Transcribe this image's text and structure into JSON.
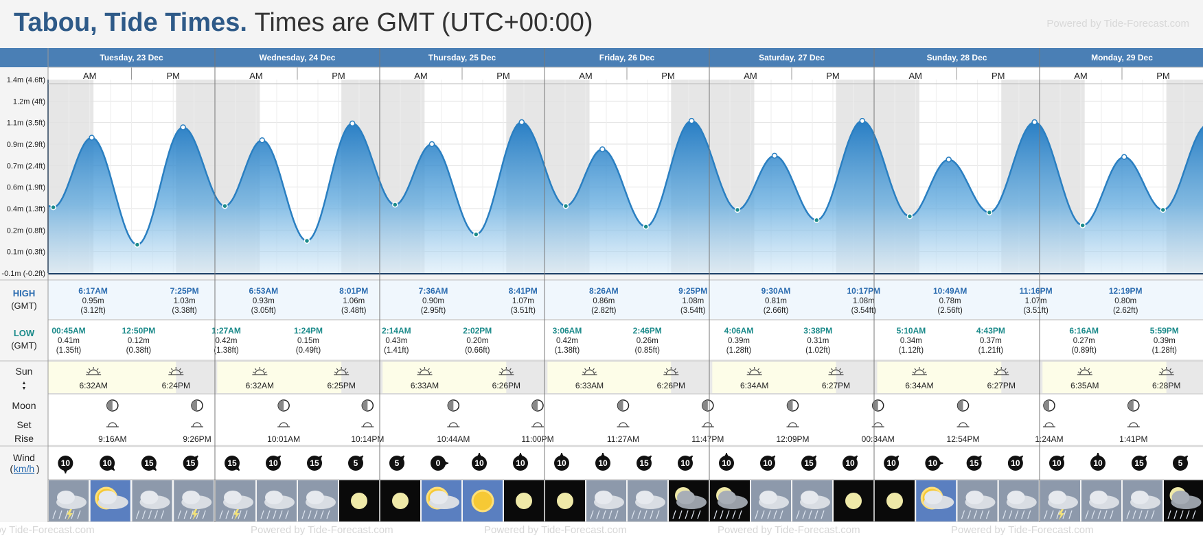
{
  "title": {
    "location": "Tabou, Tide Times.",
    "timezone": "Times are GMT (UTC+00:00)"
  },
  "powered_by": "Powered by Tide-Forecast.com",
  "ampm": {
    "am": "AM",
    "pm": "PM"
  },
  "row_labels": {
    "high": "HIGH",
    "low": "LOW",
    "tz": "(GMT)",
    "sun": "Sun",
    "moon": "Moon",
    "set": "Set",
    "rise": "Rise",
    "wind": "Wind",
    "wind_unit": "km/h"
  },
  "days": [
    {
      "label": "Tuesday, 23 Dec",
      "sunrise": "6:32AM",
      "sunset": "6:24PM",
      "moon": [
        {
          "time": "9:16AM",
          "event": "set"
        },
        {
          "time": "9:26PM",
          "event": "rise"
        }
      ]
    },
    {
      "label": "Wednesday, 24 Dec",
      "sunrise": "6:32AM",
      "sunset": "6:25PM",
      "moon": [
        {
          "time": "10:01AM",
          "event": "set"
        },
        {
          "time": "10:14PM",
          "event": "rise"
        }
      ]
    },
    {
      "label": "Thursday, 25 Dec",
      "sunrise": "6:33AM",
      "sunset": "6:26PM",
      "moon": [
        {
          "time": "10:44AM",
          "event": "set"
        },
        {
          "time": "11:00PM",
          "event": "rise"
        }
      ]
    },
    {
      "label": "Friday, 26 Dec",
      "sunrise": "6:33AM",
      "sunset": "6:26PM",
      "moon": [
        {
          "time": "11:27AM",
          "event": "set"
        },
        {
          "time": "11:47PM",
          "event": "rise"
        }
      ]
    },
    {
      "label": "Saturday, 27 Dec",
      "sunrise": "6:34AM",
      "sunset": "6:27PM",
      "moon": [
        {
          "time": "12:09PM",
          "event": "set"
        }
      ]
    },
    {
      "label": "Sunday, 28 Dec",
      "sunrise": "6:34AM",
      "sunset": "6:27PM",
      "moon": [
        {
          "time": "00:34AM",
          "event": "rise"
        },
        {
          "time": "12:54PM",
          "event": "set"
        }
      ]
    },
    {
      "label": "Monday, 29 Dec",
      "sunrise": "6:35AM",
      "sunset": "6:28PM",
      "moon": [
        {
          "time": "1:24AM",
          "event": "rise"
        },
        {
          "time": "1:41PM",
          "event": "set"
        }
      ]
    }
  ],
  "y_axis_labels": [
    "1.4m (4.6ft)",
    "1.2m (4ft)",
    "1.1m (3.5ft)",
    "0.9m (2.9ft)",
    "0.7m (2.4ft)",
    "0.6m (1.9ft)",
    "0.4m (1.3ft)",
    "0.2m (0.8ft)",
    "0.1m (0.3ft)",
    "-0.1m (-0.2ft)"
  ],
  "chart_data": {
    "type": "area",
    "x_unit": "hours since 00:00 Tue 23 Dec",
    "ylim": [
      -0.1,
      1.4
    ],
    "tides": [
      {
        "type": "low",
        "time": "00:45AM",
        "hour": 0.75,
        "m": "0.41m",
        "ft": "(1.35ft)",
        "v": 0.41
      },
      {
        "type": "high",
        "time": "6:17AM",
        "hour": 6.28,
        "m": "0.95m",
        "ft": "(3.12ft)",
        "v": 0.95
      },
      {
        "type": "low",
        "time": "12:50PM",
        "hour": 12.83,
        "m": "0.12m",
        "ft": "(0.38ft)",
        "v": 0.12
      },
      {
        "type": "high",
        "time": "7:25PM",
        "hour": 19.42,
        "m": "1.03m",
        "ft": "(3.38ft)",
        "v": 1.03
      },
      {
        "type": "low",
        "time": "1:27AM",
        "hour": 25.45,
        "m": "0.42m",
        "ft": "(1.38ft)",
        "v": 0.42
      },
      {
        "type": "high",
        "time": "6:53AM",
        "hour": 30.88,
        "m": "0.93m",
        "ft": "(3.05ft)",
        "v": 0.93
      },
      {
        "type": "low",
        "time": "1:24PM",
        "hour": 37.4,
        "m": "0.15m",
        "ft": "(0.49ft)",
        "v": 0.15
      },
      {
        "type": "high",
        "time": "8:01PM",
        "hour": 44.02,
        "m": "1.06m",
        "ft": "(3.48ft)",
        "v": 1.06
      },
      {
        "type": "low",
        "time": "2:14AM",
        "hour": 50.23,
        "m": "0.43m",
        "ft": "(1.41ft)",
        "v": 0.43
      },
      {
        "type": "high",
        "time": "7:36AM",
        "hour": 55.6,
        "m": "0.90m",
        "ft": "(2.95ft)",
        "v": 0.9
      },
      {
        "type": "low",
        "time": "2:02PM",
        "hour": 62.03,
        "m": "0.20m",
        "ft": "(0.66ft)",
        "v": 0.2
      },
      {
        "type": "high",
        "time": "8:41PM",
        "hour": 68.68,
        "m": "1.07m",
        "ft": "(3.51ft)",
        "v": 1.07
      },
      {
        "type": "low",
        "time": "3:06AM",
        "hour": 75.1,
        "m": "0.42m",
        "ft": "(1.38ft)",
        "v": 0.42
      },
      {
        "type": "high",
        "time": "8:26AM",
        "hour": 80.43,
        "m": "0.86m",
        "ft": "(2.82ft)",
        "v": 0.86
      },
      {
        "type": "low",
        "time": "2:46PM",
        "hour": 86.77,
        "m": "0.26m",
        "ft": "(0.85ft)",
        "v": 0.26
      },
      {
        "type": "high",
        "time": "9:25PM",
        "hour": 93.42,
        "m": "1.08m",
        "ft": "(3.54ft)",
        "v": 1.08
      },
      {
        "type": "low",
        "time": "4:06AM",
        "hour": 100.1,
        "m": "0.39m",
        "ft": "(1.28ft)",
        "v": 0.39
      },
      {
        "type": "high",
        "time": "9:30AM",
        "hour": 105.5,
        "m": "0.81m",
        "ft": "(2.66ft)",
        "v": 0.81
      },
      {
        "type": "low",
        "time": "3:38PM",
        "hour": 111.63,
        "m": "0.31m",
        "ft": "(1.02ft)",
        "v": 0.31
      },
      {
        "type": "high",
        "time": "10:17PM",
        "hour": 118.28,
        "m": "1.08m",
        "ft": "(3.54ft)",
        "v": 1.08
      },
      {
        "type": "low",
        "time": "5:10AM",
        "hour": 125.17,
        "m": "0.34m",
        "ft": "(1.12ft)",
        "v": 0.34
      },
      {
        "type": "high",
        "time": "10:49AM",
        "hour": 130.82,
        "m": "0.78m",
        "ft": "(2.56ft)",
        "v": 0.78
      },
      {
        "type": "low",
        "time": "4:43PM",
        "hour": 136.72,
        "m": "0.37m",
        "ft": "(1.21ft)",
        "v": 0.37
      },
      {
        "type": "high",
        "time": "11:16PM",
        "hour": 143.27,
        "m": "1.07m",
        "ft": "(3.51ft)",
        "v": 1.07
      },
      {
        "type": "low",
        "time": "6:16AM",
        "hour": 150.27,
        "m": "0.27m",
        "ft": "(0.89ft)",
        "v": 0.27
      },
      {
        "type": "high",
        "time": "12:19PM",
        "hour": 156.32,
        "m": "0.80m",
        "ft": "(2.62ft)",
        "v": 0.8
      },
      {
        "type": "low",
        "time": "5:59PM",
        "hour": 161.98,
        "m": "0.39m",
        "ft": "(1.28ft)",
        "v": 0.39
      }
    ]
  },
  "wind": [
    {
      "speed": "10",
      "dir": "s"
    },
    {
      "speed": "10",
      "dir": "se"
    },
    {
      "speed": "15",
      "dir": "se"
    },
    {
      "speed": "15",
      "dir": "ne"
    },
    {
      "speed": "15",
      "dir": "se"
    },
    {
      "speed": "10",
      "dir": "ne"
    },
    {
      "speed": "15",
      "dir": "ne"
    },
    {
      "speed": "5",
      "dir": "ne"
    },
    {
      "speed": "5",
      "dir": "ne"
    },
    {
      "speed": "0",
      "dir": "e"
    },
    {
      "speed": "10",
      "dir": "n"
    },
    {
      "speed": "10",
      "dir": "n"
    },
    {
      "speed": "10",
      "dir": "n"
    },
    {
      "speed": "10",
      "dir": "n"
    },
    {
      "speed": "15",
      "dir": "ne"
    },
    {
      "speed": "10",
      "dir": "ne"
    },
    {
      "speed": "10",
      "dir": "n"
    },
    {
      "speed": "10",
      "dir": "ne"
    },
    {
      "speed": "15",
      "dir": "ne"
    },
    {
      "speed": "10",
      "dir": "ne"
    },
    {
      "speed": "10",
      "dir": "ne"
    },
    {
      "speed": "10",
      "dir": "e"
    },
    {
      "speed": "15",
      "dir": "ne"
    },
    {
      "speed": "10",
      "dir": "ne"
    },
    {
      "speed": "10",
      "dir": "ne"
    },
    {
      "speed": "10",
      "dir": "n"
    },
    {
      "speed": "15",
      "dir": "ne"
    },
    {
      "speed": "5",
      "dir": "ne"
    }
  ],
  "weather": [
    "storm",
    "sun-cloud",
    "rain",
    "storm",
    "storm",
    "rain",
    "rain",
    "moon",
    "moon",
    "sun-cloud",
    "sun",
    "moon",
    "moon",
    "rain",
    "rain",
    "moon-rain",
    "moon-rain",
    "rain",
    "rain",
    "moon",
    "moon",
    "sun-cloud",
    "rain",
    "rain",
    "storm",
    "rain",
    "rain",
    "moon-rain"
  ],
  "colors": {
    "header": "#4a7fb5",
    "title": "#2e5a88",
    "tide": "#2a7fc1",
    "high": "#2b6cb0",
    "low": "#1b8a8a"
  }
}
